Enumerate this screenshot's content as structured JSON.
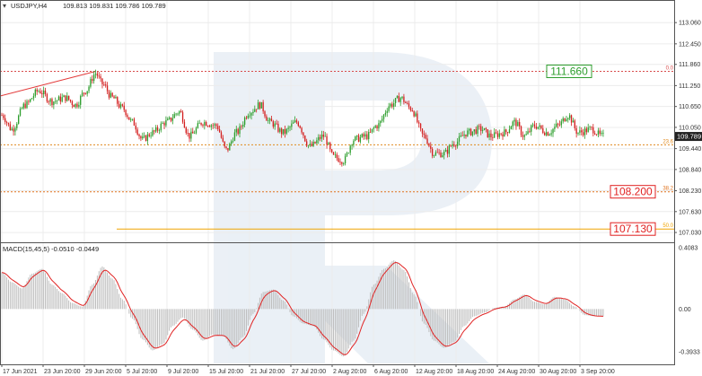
{
  "header": {
    "symbol": "USDJPY,H4",
    "quote": "109.813 109.831 109.786 109.789"
  },
  "price_panel": {
    "yaxis_ticks": [
      "113.060",
      "112.450",
      "111.860",
      "111.250",
      "110.650",
      "110.050",
      "109.440",
      "108.840",
      "108.230",
      "107.630",
      "107.030"
    ],
    "current_price": "109.789",
    "colors": {
      "up": "#2e9e2e",
      "down": "#d42020",
      "grid": "#ececec",
      "axis": "#555555"
    }
  },
  "fib_levels": [
    {
      "ratio_label": "0.0",
      "value": 111.66,
      "color": "#d84c4c"
    },
    {
      "ratio_label": "23.6",
      "value": 109.55,
      "color": "#e08a1e"
    },
    {
      "ratio_label": "38.2",
      "value": 108.2,
      "color": "#e0731e"
    },
    {
      "ratio_label": "50.0",
      "value": 107.13,
      "color": "#f0a400"
    }
  ],
  "price_boxes": [
    {
      "label": "111.660",
      "value": 111.66,
      "style": "green"
    },
    {
      "label": "108.200",
      "value": 108.2,
      "style": "red"
    },
    {
      "label": "107.130",
      "value": 107.13,
      "style": "red"
    }
  ],
  "macd_panel": {
    "label": "MACD(15,45,5) -0.0510 -0.0449",
    "yaxis_ticks": [
      "0.4083",
      "0.00",
      "-0.3933"
    ]
  },
  "xaxis_labels": [
    "17 Jun 2021",
    "23 Jun 20:00",
    "29 Jun 20:00",
    "5 Jul 20:00",
    "9 Jul 20:00",
    "15 Jul 20:00",
    "21 Jul 20:00",
    "27 Jul 20:00",
    "2 Aug 20:00",
    "6 Aug 20:00",
    "12 Aug 20:00",
    "18 Aug 20:00",
    "24 Aug 20:00",
    "30 Aug 20:00",
    "3 Sep 20:00"
  ],
  "chart_data": {
    "type": "candlestick",
    "price_ylim": [
      106.8,
      113.4
    ],
    "macd_ylim": [
      -0.44,
      0.46
    ],
    "price_anchors": [
      [
        0,
        110.4
      ],
      [
        6,
        110.0
      ],
      [
        14,
        110.7
      ],
      [
        22,
        111.1
      ],
      [
        30,
        110.8
      ],
      [
        38,
        110.9
      ],
      [
        44,
        110.7
      ],
      [
        50,
        111.1
      ],
      [
        56,
        111.6
      ],
      [
        60,
        111.3
      ],
      [
        66,
        110.9
      ],
      [
        72,
        110.6
      ],
      [
        78,
        110.2
      ],
      [
        84,
        109.7
      ],
      [
        90,
        109.9
      ],
      [
        98,
        110.2
      ],
      [
        106,
        110.5
      ],
      [
        112,
        109.8
      ],
      [
        120,
        110.2
      ],
      [
        128,
        110.1
      ],
      [
        134,
        109.4
      ],
      [
        140,
        109.9
      ],
      [
        148,
        110.5
      ],
      [
        154,
        110.7
      ],
      [
        160,
        110.2
      ],
      [
        168,
        109.9
      ],
      [
        176,
        110.2
      ],
      [
        184,
        109.5
      ],
      [
        192,
        109.8
      ],
      [
        198,
        109.2
      ],
      [
        204,
        109.1
      ],
      [
        210,
        109.7
      ],
      [
        218,
        109.8
      ],
      [
        224,
        110.1
      ],
      [
        232,
        110.7
      ],
      [
        238,
        110.9
      ],
      [
        244,
        110.6
      ],
      [
        252,
        109.8
      ],
      [
        258,
        109.3
      ],
      [
        264,
        109.3
      ],
      [
        270,
        109.6
      ],
      [
        278,
        109.9
      ],
      [
        286,
        110.0
      ],
      [
        292,
        109.8
      ],
      [
        300,
        109.9
      ],
      [
        306,
        110.2
      ],
      [
        312,
        109.8
      ],
      [
        318,
        110.1
      ],
      [
        326,
        109.9
      ],
      [
        332,
        110.1
      ],
      [
        338,
        110.4
      ],
      [
        344,
        109.9
      ],
      [
        352,
        110.0
      ],
      [
        358,
        109.8
      ]
    ],
    "macd_anchors": [
      [
        0,
        0.3
      ],
      [
        6,
        0.22
      ],
      [
        12,
        0.17
      ],
      [
        18,
        0.29
      ],
      [
        24,
        0.33
      ],
      [
        30,
        0.2
      ],
      [
        36,
        0.13
      ],
      [
        42,
        0.05
      ],
      [
        48,
        0.02
      ],
      [
        54,
        0.2
      ],
      [
        60,
        0.35
      ],
      [
        66,
        0.25
      ],
      [
        72,
        0.08
      ],
      [
        78,
        -0.08
      ],
      [
        84,
        -0.25
      ],
      [
        90,
        -0.34
      ],
      [
        96,
        -0.29
      ],
      [
        102,
        -0.14
      ],
      [
        108,
        -0.07
      ],
      [
        114,
        -0.17
      ],
      [
        120,
        -0.26
      ],
      [
        126,
        -0.21
      ],
      [
        132,
        -0.22
      ],
      [
        138,
        -0.33
      ],
      [
        144,
        -0.23
      ],
      [
        150,
        -0.04
      ],
      [
        156,
        0.14
      ],
      [
        162,
        0.16
      ],
      [
        168,
        0.07
      ],
      [
        174,
        -0.06
      ],
      [
        180,
        -0.12
      ],
      [
        186,
        -0.14
      ],
      [
        192,
        -0.25
      ],
      [
        198,
        -0.34
      ],
      [
        204,
        -0.39
      ],
      [
        210,
        -0.26
      ],
      [
        216,
        -0.04
      ],
      [
        222,
        0.2
      ],
      [
        228,
        0.33
      ],
      [
        234,
        0.4
      ],
      [
        240,
        0.32
      ],
      [
        246,
        0.12
      ],
      [
        252,
        -0.12
      ],
      [
        258,
        -0.26
      ],
      [
        264,
        -0.32
      ],
      [
        270,
        -0.27
      ],
      [
        276,
        -0.14
      ],
      [
        282,
        -0.06
      ],
      [
        288,
        -0.03
      ],
      [
        294,
        0.01
      ],
      [
        300,
        0.02
      ],
      [
        306,
        0.08
      ],
      [
        312,
        0.12
      ],
      [
        318,
        0.06
      ],
      [
        324,
        0.04
      ],
      [
        330,
        0.1
      ],
      [
        336,
        0.08
      ],
      [
        342,
        0.02
      ],
      [
        348,
        -0.05
      ],
      [
        354,
        -0.06
      ],
      [
        358,
        -0.06
      ]
    ]
  }
}
